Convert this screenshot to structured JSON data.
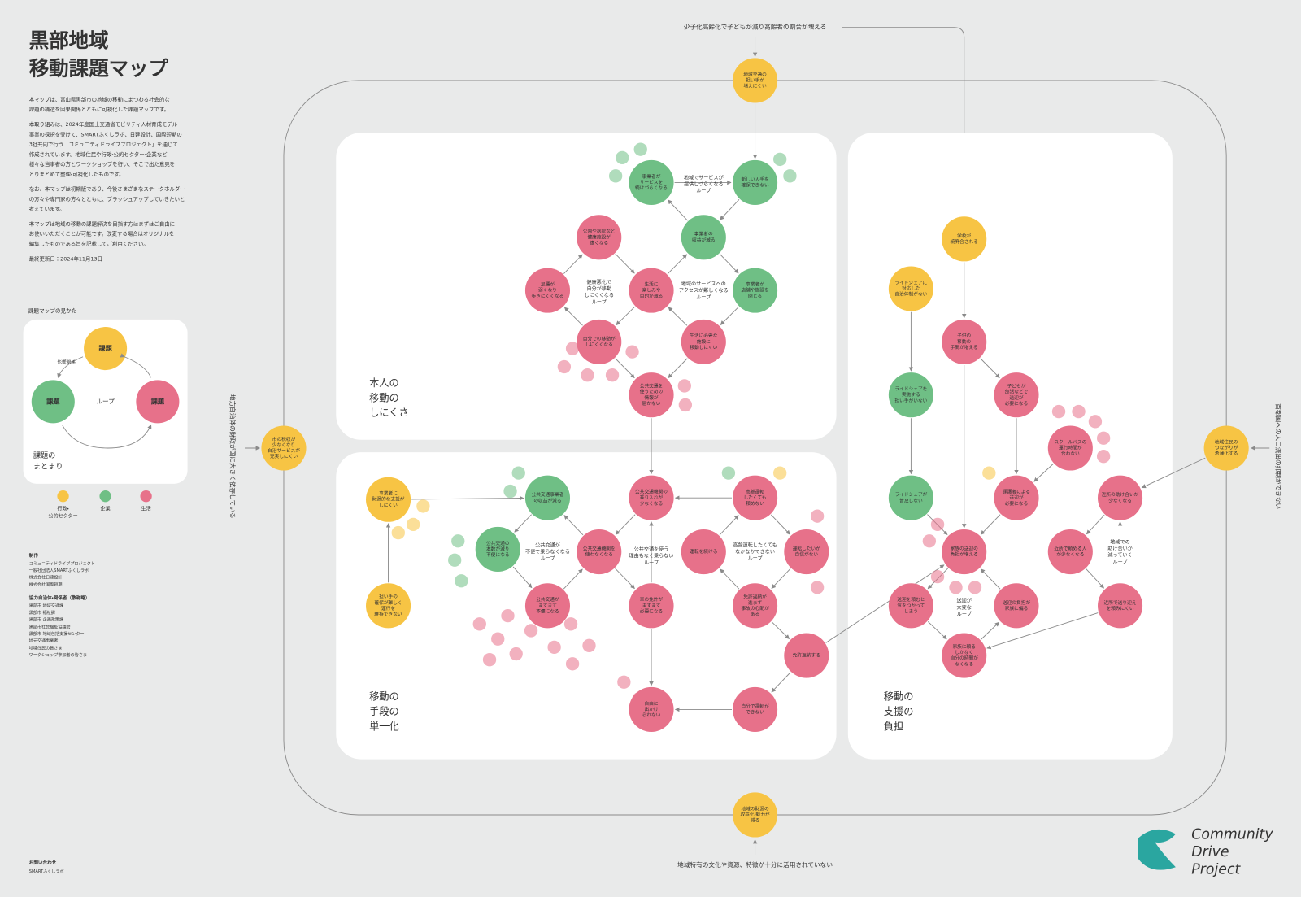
{
  "header": {
    "title_lines": [
      "黒部地域",
      "移動課題マップ"
    ]
  },
  "description": [
    [
      "本マップは、富山県黒部市の地域の移動にまつわる社会的な",
      "課題の構造を因果関係とともに可視化した課題マップです。"
    ],
    [
      "本取り組みは、2024年度国土交通省モビリティ人材育成モデル",
      "事業の採択を受けて、SMARTふくしラボ、日建設計、国際短期の",
      "3社共同で行う「コミュニティドライブプロジェクト」を通じて",
      "作成されています。地域住民や行政・公的セクター・企業など",
      "様々な当事者の方とワークショップを行い、そこで出た意見を",
      "とりまとめて整理・可視化したものです。"
    ],
    [
      "なお、本マップは初期版であり、今後さまざまなステークホルダー",
      "の方々や専門家の方々とともに、ブラッシュアップしていきたいと",
      "考えています。"
    ],
    [
      "本マップは地域の移動の課題解決を目指す方はまずはご自由に",
      "お使いいただくことが可能です。改変する場合はオリジナルを",
      "編集したものである旨を記載してご利用ください。"
    ],
    [
      "最終更新日：2024年11月13日"
    ]
  ],
  "legend": {
    "title": "課題マップの見かた",
    "issue": "課題",
    "loop": "ループ",
    "influence": "影響関係",
    "group_lines": [
      "課題の",
      "まとまり"
    ],
    "items": [
      {
        "color": "#f7c444",
        "lines": [
          "行政・",
          "公的セクター"
        ]
      },
      {
        "color": "#6fbf85",
        "lines": [
          "企業"
        ]
      },
      {
        "color": "#e7718a",
        "lines": [
          "生活"
        ]
      }
    ]
  },
  "credits": {
    "heading": "制作",
    "makers": [
      "コミュニティドライブプロジェクト",
      "一般社団法人SMARTふくしラボ",
      "株式会社日建設計",
      "株式会社国際短期"
    ],
    "heading2": "協力自治体・関係者（敬称略）",
    "people": [
      "黒部市 地域交通課",
      "黒部市 福祉課",
      "黒部市 企画政策課",
      "黒部市社会福祉協議会",
      "黒部市 地域包括支援センター",
      "地元交通事業者",
      "地域住民の皆さま",
      "ワークショップ参加者の皆さま"
    ],
    "contact_heading": "お問い合わせ",
    "contact": "SMARTふくしラボ"
  },
  "outer": {
    "top": "少子化高齢化で子どもが減り高齢者の割合が増える",
    "bottom": "地域特有の文化や資源、特徴が十分に活用されていない",
    "left": "地方自治体の財政が国に大きく依存している",
    "right": "首都圏への人口流出の抑制ができない"
  },
  "sections": [
    {
      "lines": [
        "本人の",
        "移動の",
        "しにくさ"
      ]
    },
    {
      "lines": [
        "移動の",
        "手段の",
        "単一化"
      ]
    },
    {
      "lines": [
        "移動の",
        "支援の",
        "負担"
      ]
    }
  ],
  "loops": [
    {
      "lines": [
        "地域でサービスが",
        "提供しづらくなる",
        "ループ"
      ]
    },
    {
      "lines": [
        "健康悪化で",
        "自分が移動",
        "しにくくなる",
        "ループ"
      ]
    },
    {
      "lines": [
        "地域のサービスへの",
        "アクセスが難しくなる",
        "ループ"
      ]
    },
    {
      "lines": [
        "公共交通が",
        "不便で乗らなくなる",
        "ループ"
      ]
    },
    {
      "lines": [
        "公共交通を使う",
        "理由もなく乗らない",
        "ループ"
      ]
    },
    {
      "lines": [
        "高齢運転したくても",
        "なかなかできない",
        "ループ"
      ]
    },
    {
      "lines": [
        "送迎が",
        "大変な",
        "ループ"
      ]
    },
    {
      "lines": [
        "地域での",
        "助け合いが",
        "減っていく",
        "ループ"
      ]
    }
  ],
  "nodes": [
    {
      "color": "#f7c444",
      "lines": [
        "地域交通の",
        "担い手が",
        "増えにくい"
      ]
    },
    {
      "color": "#f7c444",
      "lines": [
        "市の税収が",
        "少なくなり",
        "自治サービスが",
        "充実しにくい"
      ]
    },
    {
      "color": "#f7c444",
      "lines": [
        "事業者に",
        "財源的な支援が",
        "しにくい"
      ]
    },
    {
      "color": "#f7c444",
      "lines": [
        "担い手の",
        "確保が難しく",
        "運行を",
        "維持できない"
      ]
    },
    {
      "color": "#f7c444",
      "lines": [
        "地域の財源の",
        "収益化・魅力が",
        "減る"
      ]
    },
    {
      "color": "#f7c444",
      "lines": [
        "学校が",
        "統廃合される"
      ]
    },
    {
      "color": "#f7c444",
      "lines": [
        "ライドシェアに",
        "対応した",
        "自治体制がない"
      ]
    },
    {
      "color": "#f7c444",
      "lines": [
        "地域住民の",
        "つながりが",
        "希薄化する"
      ]
    },
    {
      "color": "#6fbf85",
      "lines": [
        "事業者が",
        "サービスを",
        "続けづらくなる"
      ]
    },
    {
      "color": "#6fbf85",
      "lines": [
        "新しい人手を",
        "確保できない"
      ]
    },
    {
      "color": "#6fbf85",
      "lines": [
        "事業者の",
        "収益が減る"
      ]
    },
    {
      "color": "#6fbf85",
      "lines": [
        "事業者が",
        "店舗や施設を",
        "閉じる"
      ]
    },
    {
      "color": "#6fbf85",
      "lines": [
        "公共交通事業者",
        "の収益が減る"
      ]
    },
    {
      "color": "#6fbf85",
      "lines": [
        "公共交通の",
        "本数が減り",
        "不便になる"
      ]
    },
    {
      "color": "#6fbf85",
      "lines": [
        "ライドシェアを",
        "実施する",
        "担い手がいない"
      ]
    },
    {
      "color": "#6fbf85",
      "lines": [
        "ライドシェアが",
        "普及しない"
      ]
    },
    {
      "color": "#e7718a",
      "lines": [
        "公園や病院など",
        "健康施設が",
        "遠くなる"
      ]
    },
    {
      "color": "#e7718a",
      "lines": [
        "足腰が",
        "弱くなり",
        "歩きにくくなる"
      ]
    },
    {
      "color": "#e7718a",
      "lines": [
        "生活に",
        "楽しみや",
        "目的が減る"
      ]
    },
    {
      "color": "#e7718a",
      "lines": [
        "自分での移動が",
        "しにくくなる"
      ]
    },
    {
      "color": "#e7718a",
      "lines": [
        "生活に必要な",
        "施設に",
        "移動しにくい"
      ]
    },
    {
      "color": "#e7718a",
      "lines": [
        "公共交通を",
        "使うための",
        "情報が",
        "届かない"
      ]
    },
    {
      "color": "#e7718a",
      "lines": [
        "公共交通機関の",
        "乗り入れが",
        "少なくなる"
      ]
    },
    {
      "color": "#e7718a",
      "lines": [
        "公共交通機関を",
        "使わなくなる"
      ]
    },
    {
      "color": "#e7718a",
      "lines": [
        "公共交通が",
        "ますます",
        "不便になる"
      ]
    },
    {
      "color": "#e7718a",
      "lines": [
        "車の免許が",
        "ますます",
        "必要になる"
      ]
    },
    {
      "color": "#e7718a",
      "lines": [
        "運転を続ける"
      ]
    },
    {
      "color": "#e7718a",
      "lines": [
        "高齢運転",
        "したくても",
        "頼めない"
      ]
    },
    {
      "color": "#e7718a",
      "lines": [
        "運転したいが",
        "自信がない"
      ]
    },
    {
      "color": "#e7718a",
      "lines": [
        "免許返納が",
        "進まず",
        "事故の心配が",
        "ある"
      ]
    },
    {
      "color": "#e7718a",
      "lines": [
        "免許返納する"
      ]
    },
    {
      "color": "#e7718a",
      "lines": [
        "自分で運転が",
        "できない"
      ]
    },
    {
      "color": "#e7718a",
      "lines": [
        "自由に",
        "出かけ",
        "られない"
      ]
    },
    {
      "color": "#e7718a",
      "lines": [
        "子供の",
        "移動の",
        "手間が増える"
      ]
    },
    {
      "color": "#e7718a",
      "lines": [
        "子どもが",
        "部活などで",
        "送迎が",
        "必要になる"
      ]
    },
    {
      "color": "#e7718a",
      "lines": [
        "スクールバスの",
        "運行時間が",
        "合わない"
      ]
    },
    {
      "color": "#e7718a",
      "lines": [
        "保護者による",
        "送迎が",
        "必要になる"
      ]
    },
    {
      "color": "#e7718a",
      "lines": [
        "家族の送迎の",
        "負担が増える"
      ]
    },
    {
      "color": "#e7718a",
      "lines": [
        "送迎を頼むと",
        "気をつかって",
        "しまう"
      ]
    },
    {
      "color": "#e7718a",
      "lines": [
        "送迎の負担が",
        "家族に偏る"
      ]
    },
    {
      "color": "#e7718a",
      "lines": [
        "家族に頼る",
        "しかなく",
        "自分の時間が",
        "なくなる"
      ]
    },
    {
      "color": "#e7718a",
      "lines": [
        "近所の助け合いが",
        "少なくなる"
      ]
    },
    {
      "color": "#e7718a",
      "lines": [
        "近所で頼める人",
        "が少なくなる"
      ]
    },
    {
      "color": "#e7718a",
      "lines": [
        "近所で送り迎え",
        "を頼みにくい"
      ]
    }
  ],
  "logo": {
    "lines": [
      "Community",
      "Drive",
      "Project"
    ]
  }
}
